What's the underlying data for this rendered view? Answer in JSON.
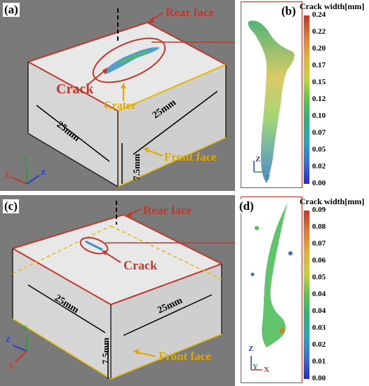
{
  "panel_a": {
    "label": "(a)",
    "rear_face": "Rear face",
    "front_face": "Front face",
    "crack": "Crack",
    "crater": "Crater",
    "dim_left": "25mm",
    "dim_right": "25mm",
    "dim_height": "7.5mm",
    "axis": {
      "x": "X",
      "y": "Y",
      "z": "Z"
    }
  },
  "panel_b": {
    "label": "(b)",
    "colorbar_title": "Crack width[mm]",
    "ticks": [
      "0.24",
      "0.22",
      "0.20",
      "0.17",
      "0.15",
      "0.12",
      "0.10",
      "0.07",
      "0.05",
      "0.02",
      "0.00"
    ],
    "axis": {
      "z": "Z",
      "y": "Y"
    }
  },
  "panel_c": {
    "label": "(c)",
    "rear_face": "Rear face",
    "front_face": "Front face",
    "crack": "Crack",
    "dim_left": "25mm",
    "dim_right": "25mm",
    "dim_height": "7.5mm",
    "axis": {
      "x": "X",
      "y": "Y",
      "z": "Z"
    }
  },
  "panel_d": {
    "label": "(d)",
    "colorbar_title": "Crack width[mm]",
    "ticks": [
      "0.09",
      "0.08",
      "0.07",
      "0.06",
      "0.05",
      "0.04",
      "0.04",
      "0.03",
      "0.02",
      "0.01",
      "0.00"
    ],
    "axis": {
      "z": "Z",
      "y": "Y",
      "x": "X"
    }
  },
  "colors": {
    "frame_red": "#c0392b",
    "front_yellow": "#e6b800",
    "annot_red": "#c0392b",
    "annot_yellow": "#e0a800"
  }
}
